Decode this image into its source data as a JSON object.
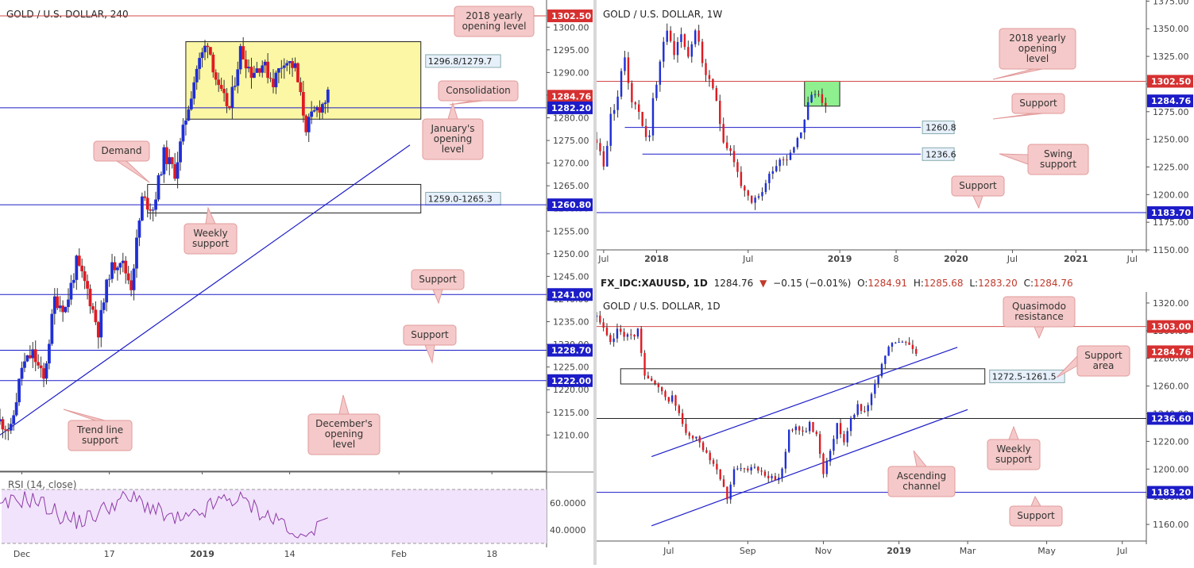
{
  "colors": {
    "bull": "#1f2fd6",
    "bear": "#e01b22",
    "blue_line": "#1c1cc8",
    "red_line": "#d24a4a",
    "black_line": "#222222",
    "zone_yellow": "#fbf7a5",
    "zone_green": "#8ff08f",
    "callout_fill": "#f5c9c9",
    "callout_border": "#e29a9a",
    "label_blue": "#1c1cc8",
    "label_red": "#d63030",
    "rsi_bg": "#f1e3fb",
    "rsi_line": "#8e3aa8"
  },
  "symbol_bar": {
    "symbol": "FX_IDC:XAUUSD, 1D",
    "last": "1284.76",
    "change": "−0.15 (−0.01%)",
    "o_label": "O:",
    "o": "1284.91",
    "h_label": "H:",
    "h": "1285.68",
    "l_label": "L:",
    "l": "1283.20",
    "c_label": "C:",
    "c": "1284.76"
  },
  "chart_data": [
    {
      "id": "h4",
      "type": "candlestick",
      "title": "GOLD / U.S. DOLLAR, 240",
      "ylim": [
        1202,
        1306
      ],
      "y_ticks": [
        "1210.00",
        "1215.00",
        "1220.00",
        "1225.00",
        "1230.00",
        "1235.00",
        "1240.00",
        "1245.00",
        "1250.00",
        "1255.00",
        "1260.00",
        "1265.00",
        "1270.00",
        "1275.00",
        "1280.00",
        "1285.00",
        "1290.00",
        "1295.00",
        "1300.00"
      ],
      "x_ticks": [
        {
          "label": "Dec",
          "i": 4
        },
        {
          "label": "17",
          "i": 20
        },
        {
          "label": "2019",
          "i": 37
        },
        {
          "label": "14",
          "i": 53
        },
        {
          "label": "Feb",
          "i": 73
        },
        {
          "label": "18",
          "i": 90
        }
      ],
      "x_range": [
        0,
        100
      ],
      "anchors": [
        [
          0,
          1213
        ],
        [
          2,
          1211
        ],
        [
          4,
          1225
        ],
        [
          6,
          1228
        ],
        [
          8,
          1222
        ],
        [
          10,
          1240
        ],
        [
          12,
          1238
        ],
        [
          14,
          1248
        ],
        [
          16,
          1242
        ],
        [
          18,
          1233
        ],
        [
          20,
          1246
        ],
        [
          22,
          1249
        ],
        [
          24,
          1243
        ],
        [
          26,
          1262
        ],
        [
          28,
          1260
        ],
        [
          30,
          1272
        ],
        [
          32,
          1268
        ],
        [
          34,
          1280
        ],
        [
          36,
          1291
        ],
        [
          38,
          1297
        ],
        [
          40,
          1286
        ],
        [
          42,
          1282
        ],
        [
          44,
          1295
        ],
        [
          46,
          1290
        ],
        [
          48,
          1292
        ],
        [
          50,
          1288
        ],
        [
          52,
          1293
        ],
        [
          54,
          1291
        ],
        [
          56,
          1278
        ],
        [
          58,
          1282
        ],
        [
          59,
          1283
        ],
        [
          60,
          1284.76
        ]
      ],
      "levels": [
        {
          "value": 1302.5,
          "label": "1302.50",
          "kind": "red"
        },
        {
          "value": 1284.76,
          "label": "1284.76",
          "kind": "red_price"
        },
        {
          "value": 1282.2,
          "label": "1282.20",
          "kind": "blue"
        },
        {
          "value": 1260.8,
          "label": "1260.80",
          "kind": "blue"
        },
        {
          "value": 1241.0,
          "label": "1241.00",
          "kind": "blue"
        },
        {
          "value": 1228.7,
          "label": "1228.70",
          "kind": "blue"
        },
        {
          "value": 1222.0,
          "label": "1222.00",
          "kind": "blue"
        }
      ],
      "zones": [
        {
          "kind": "yellow",
          "x0": 34,
          "x1": 77,
          "y0": 1296.8,
          "y1": 1279.7,
          "label": "1296.8/1279.7"
        },
        {
          "kind": "outline",
          "x0": 27,
          "x1": 77,
          "y0": 1265.3,
          "y1": 1259.0,
          "label": "1259.0-1265.3"
        }
      ],
      "trendlines": [
        {
          "x0": 0,
          "y0": 1210,
          "x1": 75,
          "y1": 1274
        }
      ],
      "annotations": [
        {
          "text": "2018 yearly\nopening level",
          "w": 100
        },
        {
          "text": "Consolidation",
          "w": 100
        },
        {
          "text": "January's\nopening\nlevel",
          "w": 76
        },
        {
          "text": "Demand",
          "w": 70
        },
        {
          "text": "Weekly\nsupport",
          "w": 66
        },
        {
          "text": "Support",
          "w": 66
        },
        {
          "text": "Support",
          "w": 66
        },
        {
          "text": "Trend line\nsupport",
          "w": 80
        },
        {
          "text": "December's\nopening\nlevel",
          "w": 90
        }
      ],
      "rsi": {
        "label": "RSI (14, close)",
        "ylim": [
          30,
          80
        ],
        "y_ticks": [
          "40.0000",
          "60.0000"
        ],
        "upper": 70,
        "lower": 30
      }
    },
    {
      "id": "w1",
      "type": "candlestick",
      "title": "GOLD / U.S. DOLLAR, 1W",
      "ylim": [
        1150,
        1376
      ],
      "y_ticks": [
        "1150.00",
        "1175.00",
        "1200.00",
        "1225.00",
        "1250.00",
        "1275.00",
        "1300.00",
        "1325.00",
        "1350.00",
        "1375.00"
      ],
      "x_ticks": [
        {
          "label": "Jul",
          "i": 2
        },
        {
          "label": "2018",
          "i": 17
        },
        {
          "label": "Jul",
          "i": 43
        },
        {
          "label": "2019",
          "i": 69
        },
        {
          "label": "8",
          "i": 85
        },
        {
          "label": "2020",
          "i": 102
        },
        {
          "label": "Jul",
          "i": 118
        },
        {
          "label": "2021",
          "i": 136
        },
        {
          "label": "Jul",
          "i": 152
        }
      ],
      "x_range": [
        0,
        156
      ],
      "anchors": [
        [
          0,
          1250
        ],
        [
          2,
          1225
        ],
        [
          4,
          1270
        ],
        [
          6,
          1290
        ],
        [
          8,
          1325
        ],
        [
          10,
          1285
        ],
        [
          12,
          1275
        ],
        [
          14,
          1255
        ],
        [
          15,
          1250
        ],
        [
          16,
          1285
        ],
        [
          18,
          1320
        ],
        [
          19,
          1340
        ],
        [
          20,
          1345
        ],
        [
          22,
          1330
        ],
        [
          24,
          1345
        ],
        [
          26,
          1325
        ],
        [
          28,
          1350
        ],
        [
          30,
          1320
        ],
        [
          32,
          1300
        ],
        [
          34,
          1285
        ],
        [
          36,
          1250
        ],
        [
          38,
          1240
        ],
        [
          40,
          1220
        ],
        [
          42,
          1200
        ],
        [
          44,
          1190
        ],
        [
          46,
          1198
        ],
        [
          48,
          1210
        ],
        [
          50,
          1225
        ],
        [
          52,
          1232
        ],
        [
          54,
          1235
        ],
        [
          56,
          1245
        ],
        [
          58,
          1258
        ],
        [
          60,
          1283
        ],
        [
          62,
          1292
        ],
        [
          64,
          1287
        ],
        [
          65,
          1284.76
        ]
      ],
      "levels": [
        {
          "value": 1302.5,
          "label": "1302.50",
          "kind": "red"
        },
        {
          "value": 1284.76,
          "label": "1284.76",
          "kind": "blue_price"
        },
        {
          "value": 1183.7,
          "label": "1183.70",
          "kind": "blue"
        }
      ],
      "segments": [
        {
          "value": 1260.8,
          "label": "1260.8",
          "x0": 8,
          "x1": 92
        },
        {
          "value": 1236.6,
          "label": "1236.6",
          "x0": 13,
          "x1": 92
        }
      ],
      "zones": [
        {
          "kind": "green",
          "x0": 59,
          "x1": 69,
          "y0": 1302.5,
          "y1": 1280.0,
          "label": ""
        }
      ],
      "annotations": [
        {
          "text": "2018 yearly\nopening\nlevel",
          "w": 96
        },
        {
          "text": "Support",
          "w": 66
        },
        {
          "text": "Swing\nsupport",
          "w": 76
        },
        {
          "text": "Support",
          "w": 66
        }
      ]
    },
    {
      "id": "d1",
      "type": "candlestick",
      "title": "GOLD / U.S. DOLLAR, 1D",
      "ylim": [
        1148,
        1328
      ],
      "y_ticks": [
        "1160.00",
        "1180.00",
        "1200.00",
        "1220.00",
        "1240.00",
        "1260.00",
        "1280.00",
        "1300.00",
        "1320.00"
      ],
      "x_ticks": [
        {
          "label": "Jul",
          "i": 21
        },
        {
          "label": "Sep",
          "i": 44
        },
        {
          "label": "Nov",
          "i": 66
        },
        {
          "label": "2019",
          "i": 88
        },
        {
          "label": "Mar",
          "i": 108
        },
        {
          "label": "May",
          "i": 131
        },
        {
          "label": "Jul",
          "i": 153
        }
      ],
      "x_range": [
        0,
        160
      ],
      "anchors": [
        [
          0,
          1310
        ],
        [
          2,
          1300
        ],
        [
          4,
          1290
        ],
        [
          6,
          1300
        ],
        [
          8,
          1298
        ],
        [
          10,
          1295
        ],
        [
          12,
          1300
        ],
        [
          14,
          1270
        ],
        [
          16,
          1262
        ],
        [
          18,
          1258
        ],
        [
          20,
          1250
        ],
        [
          22,
          1252
        ],
        [
          24,
          1240
        ],
        [
          26,
          1225
        ],
        [
          28,
          1222
        ],
        [
          30,
          1220
        ],
        [
          32,
          1212
        ],
        [
          34,
          1205
        ],
        [
          36,
          1195
        ],
        [
          38,
          1180
        ],
        [
          40,
          1198
        ],
        [
          42,
          1200
        ],
        [
          44,
          1198
        ],
        [
          46,
          1202
        ],
        [
          48,
          1200
        ],
        [
          50,
          1195
        ],
        [
          52,
          1190
        ],
        [
          54,
          1200
        ],
        [
          56,
          1228
        ],
        [
          58,
          1232
        ],
        [
          60,
          1225
        ],
        [
          62,
          1232
        ],
        [
          64,
          1225
        ],
        [
          66,
          1198
        ],
        [
          68,
          1215
        ],
        [
          70,
          1232
        ],
        [
          72,
          1220
        ],
        [
          74,
          1238
        ],
        [
          76,
          1245
        ],
        [
          78,
          1242
        ],
        [
          80,
          1255
        ],
        [
          82,
          1265
        ],
        [
          84,
          1282
        ],
        [
          86,
          1292
        ],
        [
          88,
          1290
        ],
        [
          90,
          1292
        ],
        [
          92,
          1288
        ],
        [
          93,
          1284.76
        ]
      ],
      "levels": [
        {
          "value": 1303.0,
          "label": "1303.00",
          "kind": "red"
        },
        {
          "value": 1284.76,
          "label": "1284.76",
          "kind": "red_price"
        },
        {
          "value": 1236.6,
          "label": "1236.60",
          "kind": "black"
        },
        {
          "value": 1183.2,
          "label": "1183.20",
          "kind": "blue"
        }
      ],
      "zones": [
        {
          "kind": "outline",
          "x0": 7,
          "x1": 113,
          "y0": 1272.5,
          "y1": 1261.5,
          "label": "1272.5-1261.5"
        }
      ],
      "trendlines": [
        {
          "x0": 16,
          "y0": 1209,
          "x1": 105,
          "y1": 1288
        },
        {
          "x0": 16,
          "y0": 1159,
          "x1": 108,
          "y1": 1243
        }
      ],
      "annotations": [
        {
          "text": "Quasimodo\nresistance",
          "w": 90
        },
        {
          "text": "Support\narea",
          "w": 66
        },
        {
          "text": "Weekly\nsupport",
          "w": 66
        },
        {
          "text": "Ascending\nchannel",
          "w": 84
        },
        {
          "text": "Support",
          "w": 66
        }
      ]
    }
  ]
}
